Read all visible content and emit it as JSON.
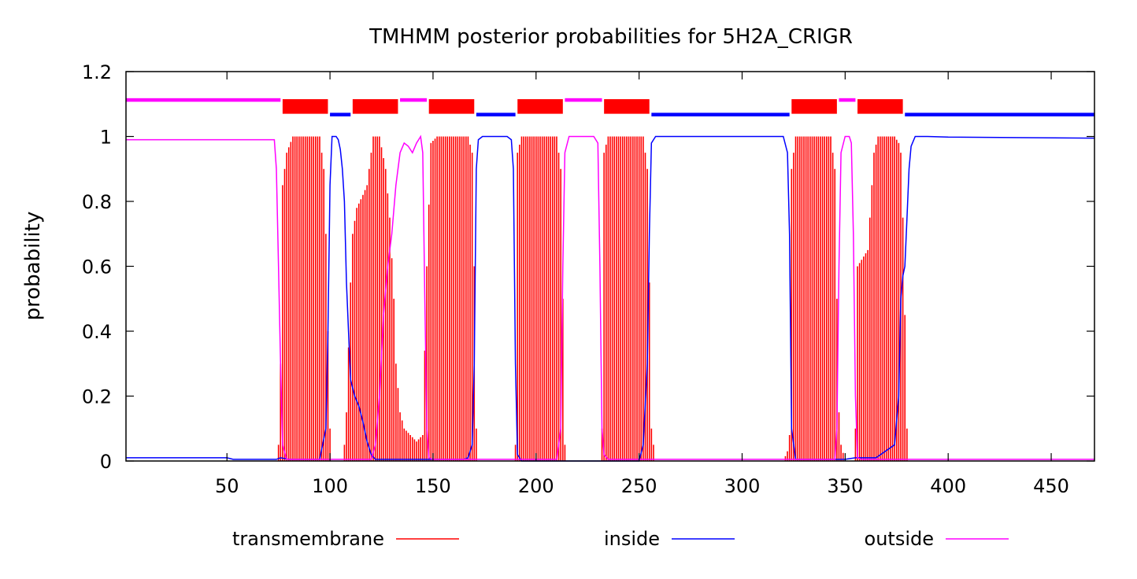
{
  "colors": {
    "transmembrane": "#ff0000",
    "inside": "#0000ff",
    "outside": "#ff00ff",
    "axis": "#000000",
    "background": "#ffffff"
  },
  "chart_data": {
    "type": "line",
    "title": "TMHMM posterior probabilities for 5H2A_CRIGR",
    "xlabel": "",
    "ylabel": "probability",
    "xlim": [
      1,
      471
    ],
    "ylim": [
      0,
      1.2
    ],
    "x_ticks": [
      50,
      100,
      150,
      200,
      250,
      300,
      350,
      400,
      450
    ],
    "y_ticks": [
      0,
      0.2,
      0.4,
      0.6,
      0.8,
      1,
      1.2
    ],
    "y_tick_labels": [
      "0",
      "0.2",
      "0.4",
      "0.6",
      "0.8",
      "1",
      "1.2"
    ],
    "grid": false,
    "legend_position": "bottom",
    "legend": [
      {
        "key": "transmembrane",
        "label": "transmembrane",
        "color": "#ff0000"
      },
      {
        "key": "inside",
        "label": "inside",
        "color": "#0000ff"
      },
      {
        "key": "outside",
        "label": "outside",
        "color": "#ff00ff"
      }
    ],
    "topology": [
      {
        "type": "outside",
        "start": 1,
        "end": 76
      },
      {
        "type": "transmembrane",
        "start": 77,
        "end": 99
      },
      {
        "type": "inside",
        "start": 100,
        "end": 110
      },
      {
        "type": "transmembrane",
        "start": 111,
        "end": 133
      },
      {
        "type": "outside",
        "start": 134,
        "end": 147
      },
      {
        "type": "transmembrane",
        "start": 148,
        "end": 170
      },
      {
        "type": "inside",
        "start": 171,
        "end": 190
      },
      {
        "type": "transmembrane",
        "start": 191,
        "end": 213
      },
      {
        "type": "outside",
        "start": 214,
        "end": 232
      },
      {
        "type": "transmembrane",
        "start": 233,
        "end": 255
      },
      {
        "type": "inside",
        "start": 256,
        "end": 323
      },
      {
        "type": "transmembrane",
        "start": 324,
        "end": 346
      },
      {
        "type": "outside",
        "start": 347,
        "end": 355
      },
      {
        "type": "transmembrane",
        "start": 356,
        "end": 378
      },
      {
        "type": "inside",
        "start": 379,
        "end": 471
      }
    ],
    "series": [
      {
        "name": "transmembrane",
        "style": "impulses",
        "points": [
          [
            1,
            0
          ],
          [
            74,
            0
          ],
          [
            75,
            0.05
          ],
          [
            76,
            0.3
          ],
          [
            77,
            0.85
          ],
          [
            79,
            0.95
          ],
          [
            82,
            1.0
          ],
          [
            95,
            1.0
          ],
          [
            97,
            0.9
          ],
          [
            98,
            0.7
          ],
          [
            99,
            0.4
          ],
          [
            100,
            0.1
          ],
          [
            101,
            0
          ],
          [
            106,
            0
          ],
          [
            107,
            0.05
          ],
          [
            108,
            0.15
          ],
          [
            109,
            0.35
          ],
          [
            110,
            0.55
          ],
          [
            111,
            0.7
          ],
          [
            113,
            0.78
          ],
          [
            116,
            0.82
          ],
          [
            118,
            0.85
          ],
          [
            120,
            0.95
          ],
          [
            121,
            1.0
          ],
          [
            124,
            1.0
          ],
          [
            127,
            0.9
          ],
          [
            129,
            0.75
          ],
          [
            131,
            0.5
          ],
          [
            132,
            0.3
          ],
          [
            134,
            0.15
          ],
          [
            136,
            0.1
          ],
          [
            139,
            0.08
          ],
          [
            142,
            0.06
          ],
          [
            145,
            0.08
          ],
          [
            147,
            0.6
          ],
          [
            149,
            0.98
          ],
          [
            152,
            1.0
          ],
          [
            167,
            1.0
          ],
          [
            169,
            0.95
          ],
          [
            170,
            0.6
          ],
          [
            171,
            0.1
          ],
          [
            172,
            0
          ],
          [
            189,
            0
          ],
          [
            190,
            0.05
          ],
          [
            191,
            0.95
          ],
          [
            193,
            1.0
          ],
          [
            210,
            1.0
          ],
          [
            212,
            0.9
          ],
          [
            213,
            0.5
          ],
          [
            214,
            0.05
          ],
          [
            215,
            0
          ],
          [
            231,
            0
          ],
          [
            232,
            0.1
          ],
          [
            233,
            0.95
          ],
          [
            235,
            1.0
          ],
          [
            252,
            1.0
          ],
          [
            254,
            0.9
          ],
          [
            255,
            0.55
          ],
          [
            256,
            0.1
          ],
          [
            258,
            0
          ],
          [
            320,
            0
          ],
          [
            322,
            0.03
          ],
          [
            323,
            0.08
          ],
          [
            324,
            0.9
          ],
          [
            326,
            1.0
          ],
          [
            343,
            1.0
          ],
          [
            345,
            0.9
          ],
          [
            346,
            0.5
          ],
          [
            347,
            0.15
          ],
          [
            348,
            0.05
          ],
          [
            350,
            0
          ],
          [
            354,
            0
          ],
          [
            355,
            0.1
          ],
          [
            356,
            0.6
          ],
          [
            358,
            0.62
          ],
          [
            361,
            0.65
          ],
          [
            364,
            0.95
          ],
          [
            366,
            1.0
          ],
          [
            374,
            1.0
          ],
          [
            376,
            0.98
          ],
          [
            377,
            0.95
          ],
          [
            378,
            0.75
          ],
          [
            379,
            0.45
          ],
          [
            380,
            0.1
          ],
          [
            381,
            0
          ],
          [
            471,
            0
          ]
        ]
      },
      {
        "name": "inside",
        "style": "line",
        "points": [
          [
            1,
            0.01
          ],
          [
            50,
            0.01
          ],
          [
            53,
            0.005
          ],
          [
            74,
            0.005
          ],
          [
            76,
            0.01
          ],
          [
            80,
            0.005
          ],
          [
            95,
            0.005
          ],
          [
            98,
            0.1
          ],
          [
            99,
            0.4
          ],
          [
            100,
            0.85
          ],
          [
            101,
            1.0
          ],
          [
            103,
            1.0
          ],
          [
            104,
            0.99
          ],
          [
            105,
            0.96
          ],
          [
            106,
            0.9
          ],
          [
            107,
            0.8
          ],
          [
            108,
            0.55
          ],
          [
            109,
            0.4
          ],
          [
            110,
            0.25
          ],
          [
            112,
            0.2
          ],
          [
            114,
            0.17
          ],
          [
            116,
            0.12
          ],
          [
            118,
            0.06
          ],
          [
            120,
            0.02
          ],
          [
            122,
            0.005
          ],
          [
            145,
            0.005
          ],
          [
            165,
            0.005
          ],
          [
            167,
            0.01
          ],
          [
            169,
            0.05
          ],
          [
            170,
            0.3
          ],
          [
            171,
            0.9
          ],
          [
            172,
            0.99
          ],
          [
            174,
            1.0
          ],
          [
            186,
            1.0
          ],
          [
            188,
            0.99
          ],
          [
            189,
            0.9
          ],
          [
            190,
            0.3
          ],
          [
            191,
            0.02
          ],
          [
            193,
            0
          ],
          [
            250,
            0
          ],
          [
            252,
            0.05
          ],
          [
            254,
            0.3
          ],
          [
            255,
            0.7
          ],
          [
            256,
            0.98
          ],
          [
            258,
            1.0
          ],
          [
            320,
            1.0
          ],
          [
            322,
            0.95
          ],
          [
            323,
            0.7
          ],
          [
            324,
            0.1
          ],
          [
            326,
            0.005
          ],
          [
            350,
            0.005
          ],
          [
            355,
            0.01
          ],
          [
            365,
            0.01
          ],
          [
            374,
            0.05
          ],
          [
            376,
            0.2
          ],
          [
            377,
            0.5
          ],
          [
            378,
            0.57
          ],
          [
            379,
            0.6
          ],
          [
            380,
            0.75
          ],
          [
            381,
            0.9
          ],
          [
            382,
            0.97
          ],
          [
            384,
            1.0
          ],
          [
            390,
            1.0
          ],
          [
            400,
            0.998
          ],
          [
            471,
            0.995
          ]
        ]
      },
      {
        "name": "outside",
        "style": "line",
        "points": [
          [
            1,
            0.99
          ],
          [
            50,
            0.99
          ],
          [
            73,
            0.99
          ],
          [
            74,
            0.9
          ],
          [
            75,
            0.6
          ],
          [
            76,
            0.3
          ],
          [
            77,
            0.05
          ],
          [
            79,
            0.005
          ],
          [
            100,
            0.005
          ],
          [
            120,
            0.005
          ],
          [
            122,
            0.05
          ],
          [
            124,
            0.2
          ],
          [
            126,
            0.45
          ],
          [
            128,
            0.6
          ],
          [
            130,
            0.7
          ],
          [
            132,
            0.85
          ],
          [
            134,
            0.95
          ],
          [
            136,
            0.98
          ],
          [
            138,
            0.97
          ],
          [
            140,
            0.95
          ],
          [
            142,
            0.98
          ],
          [
            144,
            1.0
          ],
          [
            145,
            0.95
          ],
          [
            146,
            0.5
          ],
          [
            147,
            0.1
          ],
          [
            148,
            0.01
          ],
          [
            150,
            0.005
          ],
          [
            210,
            0.005
          ],
          [
            212,
            0.1
          ],
          [
            213,
            0.6
          ],
          [
            214,
            0.95
          ],
          [
            216,
            1.0
          ],
          [
            228,
            1.0
          ],
          [
            230,
            0.98
          ],
          [
            231,
            0.6
          ],
          [
            232,
            0.1
          ],
          [
            233,
            0.02
          ],
          [
            235,
            0.005
          ],
          [
            250,
            0.005
          ],
          [
            345,
            0.005
          ],
          [
            346,
            0.1
          ],
          [
            347,
            0.6
          ],
          [
            348,
            0.95
          ],
          [
            350,
            1.0
          ],
          [
            352,
            1.0
          ],
          [
            353,
            0.98
          ],
          [
            354,
            0.7
          ],
          [
            355,
            0.2
          ],
          [
            356,
            0.01
          ],
          [
            358,
            0.005
          ],
          [
            380,
            0.005
          ],
          [
            471,
            0.005
          ]
        ]
      }
    ]
  }
}
